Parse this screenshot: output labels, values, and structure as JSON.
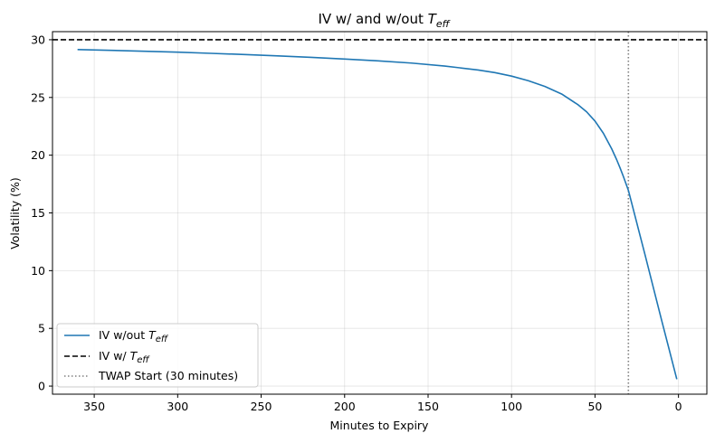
{
  "chart_data": {
    "type": "line",
    "title_main": "IV w/ and w/out ",
    "title_sym": "T",
    "title_sub": "eff",
    "xlabel": "Minutes to Expiry",
    "ylabel": "Volatility (%)",
    "xlim": [
      375,
      -17
    ],
    "ylim": [
      -0.7,
      30.7
    ],
    "x_reversed": true,
    "grid": true,
    "xticks": [
      350,
      300,
      250,
      200,
      150,
      100,
      50,
      0
    ],
    "yticks": [
      0,
      5,
      10,
      15,
      20,
      25,
      30
    ],
    "legend_position": "lower-left",
    "series": [
      {
        "name": "IV w/out ",
        "name_sym": "T",
        "name_sub": "eff",
        "color": "#1f77b4",
        "style": "solid",
        "x": [
          360,
          340,
          320,
          300,
          280,
          260,
          240,
          220,
          200,
          180,
          160,
          140,
          120,
          110,
          100,
          90,
          80,
          70,
          60,
          55,
          50,
          45,
          40,
          37,
          35,
          33,
          31,
          30,
          25,
          20,
          15,
          10,
          5,
          1
        ],
        "y": [
          29.15,
          29.08,
          29.0,
          28.92,
          28.82,
          28.72,
          28.6,
          28.47,
          28.33,
          28.17,
          27.98,
          27.72,
          27.38,
          27.15,
          26.85,
          26.45,
          25.95,
          25.3,
          24.35,
          23.75,
          22.95,
          21.9,
          20.55,
          19.6,
          18.9,
          18.15,
          17.35,
          16.95,
          14.15,
          11.35,
          8.5,
          5.65,
          2.85,
          0.6
        ]
      },
      {
        "name": "IV w/ ",
        "name_sym": "T",
        "name_sub": "eff",
        "color": "#000000",
        "style": "dashed",
        "hline": 30
      },
      {
        "name": "TWAP Start (30 minutes)",
        "color": "#808080",
        "style": "dotted",
        "vline": 30
      }
    ]
  }
}
